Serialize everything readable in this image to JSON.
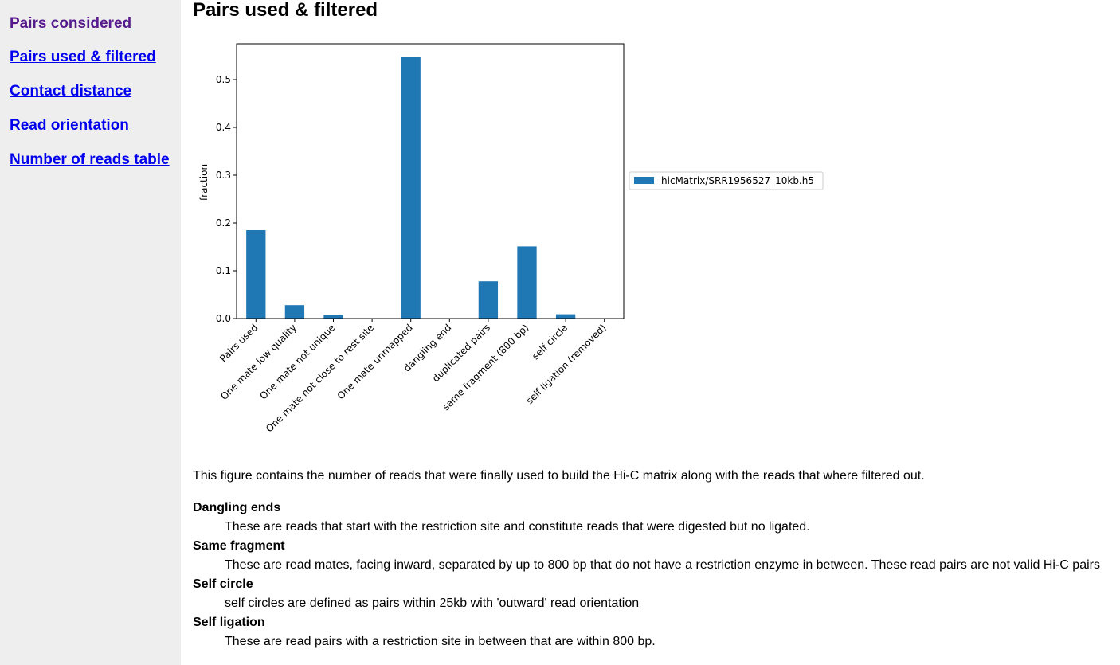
{
  "nav": {
    "items": [
      {
        "label": "Pairs considered",
        "visited": true
      },
      {
        "label": "Pairs used & filtered",
        "visited": false
      },
      {
        "label": "Contact distance",
        "visited": false
      },
      {
        "label": "Read orientation",
        "visited": false
      },
      {
        "label": "Number of reads table",
        "visited": false
      }
    ]
  },
  "page": {
    "title": "Pairs used & filtered",
    "description": "This figure contains the number of reads that were finally used to build the Hi-C matrix along with the reads that where filtered out."
  },
  "definitions": [
    {
      "term": "Dangling ends",
      "text": "These are reads that start with the restriction site and constitute reads that were digested but no ligated."
    },
    {
      "term": "Same fragment",
      "text": "These are read mates, facing inward, separated by up to 800 bp that do not have a restriction enzyme in between. These read pairs are not valid Hi-C pairs"
    },
    {
      "term": "Self circle",
      "text": "self circles are defined as pairs within 25kb with 'outward' read orientation"
    },
    {
      "term": "Self ligation",
      "text": "These are read pairs with a restriction site in between that are within 800 bp."
    }
  ],
  "colors": {
    "bar": "#1f77b4",
    "link": "#0000ee",
    "link_visited": "#551a8b",
    "sidebar_bg": "#eeeeee"
  },
  "chart_data": {
    "type": "bar",
    "categories": [
      "Pairs used",
      "One mate low quality",
      "One mate not unique",
      "One mate not close to rest site",
      "One mate unmapped",
      "dangling end",
      "duplicated pairs",
      "same fragment (800 bp)",
      "self circle",
      "self ligation (removed)"
    ],
    "series": [
      {
        "name": "hicMatrix/SRR1956527_10kb.h5",
        "values": [
          0.185,
          0.028,
          0.007,
          0.0,
          0.548,
          0.0,
          0.078,
          0.151,
          0.009,
          0.0
        ]
      }
    ],
    "ylabel": "fraction",
    "ylim": [
      0,
      0.575
    ],
    "yticks": [
      0.0,
      0.1,
      0.2,
      0.3,
      0.4,
      0.5
    ],
    "ytick_labels": [
      "0.0",
      "0.1",
      "0.2",
      "0.3",
      "0.4",
      "0.5"
    ],
    "legend_position": "outside-right",
    "grid": false
  }
}
